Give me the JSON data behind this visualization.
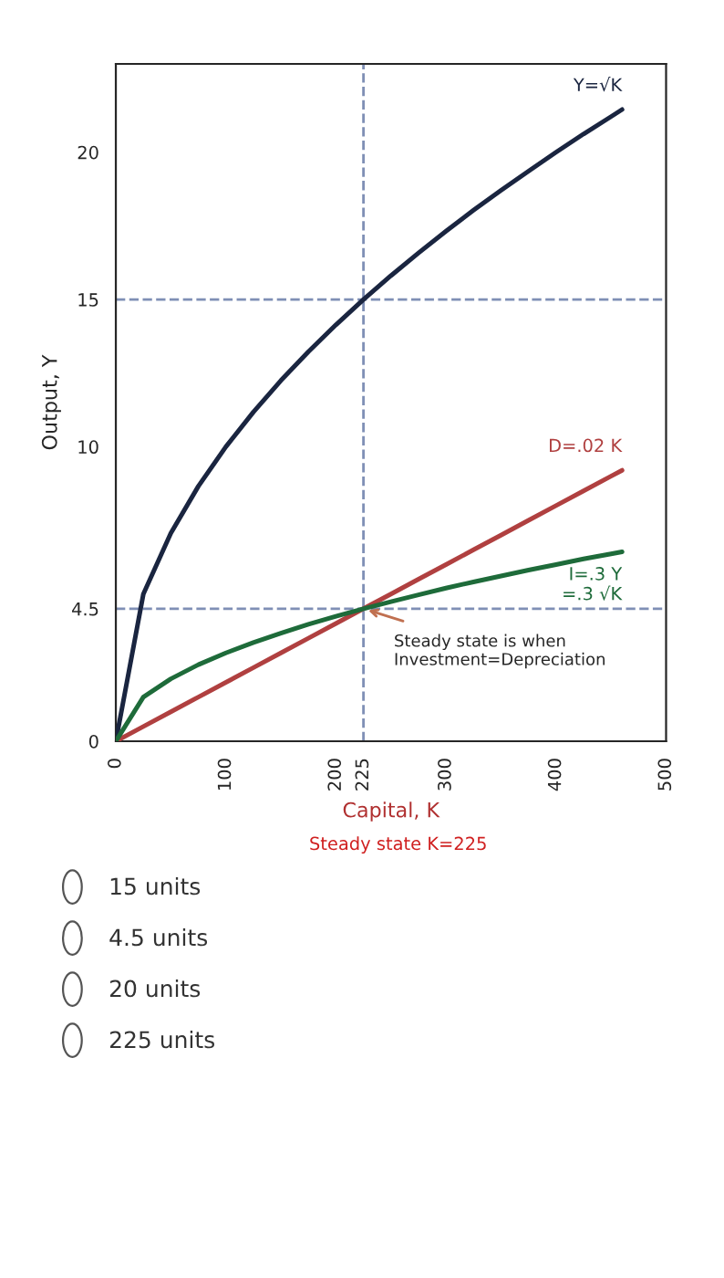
{
  "chart_data": {
    "type": "line",
    "xlabel": "Capital, K",
    "ylabel": "Output, Y",
    "x": [
      0,
      25,
      50,
      75,
      100,
      125,
      150,
      175,
      200,
      225,
      250,
      275,
      300,
      325,
      350,
      375,
      400,
      425,
      450,
      460
    ],
    "series": [
      {
        "name": "Y=√K",
        "color": "#1a2540",
        "values": [
          0,
          5,
          7.07,
          8.66,
          10,
          11.18,
          12.25,
          13.23,
          14.14,
          15,
          15.81,
          16.58,
          17.32,
          18.03,
          18.71,
          19.36,
          20,
          20.62,
          21.21,
          21.45
        ]
      },
      {
        "name": "D=.02 K",
        "color": "#b04040",
        "values": [
          0,
          0.5,
          1,
          1.5,
          2,
          2.5,
          3,
          3.5,
          4,
          4.5,
          5,
          5.5,
          6,
          6.5,
          7,
          7.5,
          8,
          8.5,
          9,
          9.2
        ]
      },
      {
        "name": "I=.3 Y\n=.3 √K",
        "color": "#1e6b3a",
        "values": [
          0,
          1.5,
          2.12,
          2.6,
          3,
          3.35,
          3.67,
          3.97,
          4.24,
          4.5,
          4.74,
          4.97,
          5.2,
          5.41,
          5.61,
          5.81,
          6,
          6.19,
          6.36,
          6.43
        ]
      }
    ],
    "xlim": [
      0,
      500
    ],
    "ylim": [
      0,
      23
    ],
    "xticks": [
      0,
      100,
      200,
      225,
      300,
      400,
      500
    ],
    "yticks": [
      0,
      4.5,
      10,
      15,
      20
    ],
    "legend": false,
    "marker": "none",
    "line_style": "solid",
    "ref_lines": [
      {
        "axis": "y",
        "value": 15,
        "label": null,
        "color": "#7f8fb5",
        "line_style": "dashed"
      },
      {
        "axis": "y",
        "value": 4.5,
        "label": null,
        "color": "#7f8fb5",
        "line_style": "dashed"
      },
      {
        "axis": "x",
        "value": 225,
        "label": null,
        "color": "#7f8fb5",
        "line_style": "dashed"
      }
    ],
    "annotations": [
      {
        "text": "Steady state is when\nInvestment=Depreciation",
        "x": 225,
        "y": 4.5
      },
      "Steady state K=225",
      "15 units",
      "4.5 units",
      "20 units",
      "225 units"
    ]
  }
}
